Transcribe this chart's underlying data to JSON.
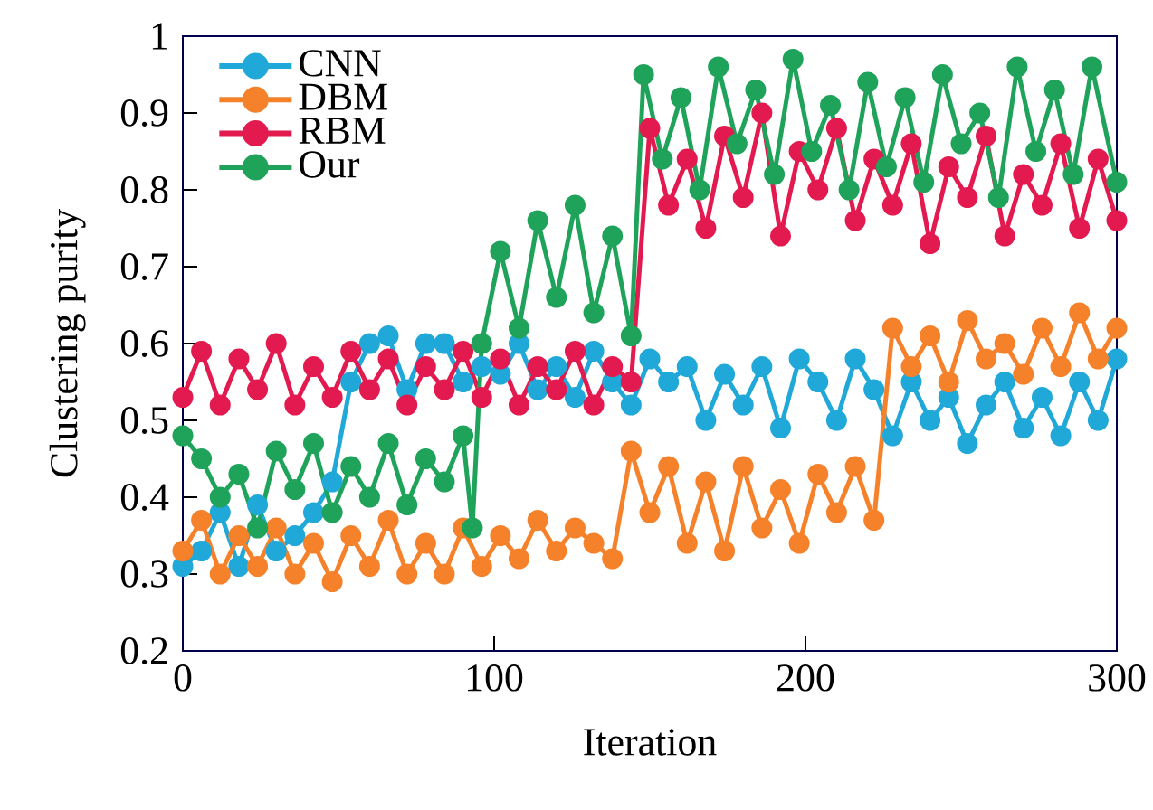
{
  "chart_data": {
    "type": "line",
    "xlabel": "Iteration",
    "ylabel": "Clustering purity",
    "xlim": [
      0,
      300
    ],
    "ylim": [
      0.2,
      1
    ],
    "xticks": [
      0,
      100,
      200,
      300
    ],
    "yticks": [
      0.2,
      0.3,
      0.4,
      0.5,
      0.6,
      0.7,
      0.8,
      0.9,
      1
    ],
    "grid": false,
    "legend": "top left",
    "marker": "circle",
    "line_style": "solid",
    "series": [
      {
        "name": "CNN",
        "color": "#1fa8d8",
        "x": [
          0,
          6,
          12,
          18,
          24,
          30,
          36,
          42,
          48,
          54,
          60,
          66,
          72,
          78,
          84,
          90,
          96,
          102,
          108,
          114,
          120,
          126,
          132,
          138,
          144,
          150,
          156,
          162,
          168,
          174,
          180,
          186,
          192,
          198,
          204,
          210,
          216,
          222,
          228,
          234,
          240,
          246,
          252,
          258,
          264,
          270,
          276,
          282,
          288,
          294,
          300
        ],
        "values": [
          0.31,
          0.33,
          0.38,
          0.31,
          0.39,
          0.33,
          0.35,
          0.38,
          0.42,
          0.55,
          0.6,
          0.61,
          0.54,
          0.6,
          0.6,
          0.55,
          0.57,
          0.56,
          0.6,
          0.54,
          0.57,
          0.53,
          0.59,
          0.55,
          0.52,
          0.58,
          0.55,
          0.57,
          0.5,
          0.56,
          0.52,
          0.57,
          0.49,
          0.58,
          0.55,
          0.5,
          0.58,
          0.54,
          0.48,
          0.55,
          0.5,
          0.53,
          0.47,
          0.52,
          0.55,
          0.49,
          0.53,
          0.48,
          0.55,
          0.5,
          0.58
        ]
      },
      {
        "name": "DBM",
        "color": "#f5822a",
        "x": [
          0,
          6,
          12,
          18,
          24,
          30,
          36,
          42,
          48,
          54,
          60,
          66,
          72,
          78,
          84,
          90,
          96,
          102,
          108,
          114,
          120,
          126,
          132,
          138,
          144,
          150,
          156,
          162,
          168,
          174,
          180,
          186,
          192,
          198,
          204,
          210,
          216,
          222,
          228,
          234,
          240,
          246,
          252,
          258,
          264,
          270,
          276,
          282,
          288,
          294,
          300
        ],
        "values": [
          0.33,
          0.37,
          0.3,
          0.35,
          0.31,
          0.36,
          0.3,
          0.34,
          0.29,
          0.35,
          0.31,
          0.37,
          0.3,
          0.34,
          0.3,
          0.36,
          0.31,
          0.35,
          0.32,
          0.37,
          0.33,
          0.36,
          0.34,
          0.32,
          0.46,
          0.38,
          0.44,
          0.34,
          0.42,
          0.33,
          0.44,
          0.36,
          0.41,
          0.34,
          0.43,
          0.38,
          0.44,
          0.37,
          0.62,
          0.57,
          0.61,
          0.55,
          0.63,
          0.58,
          0.6,
          0.56,
          0.62,
          0.57,
          0.64,
          0.58,
          0.62
        ]
      },
      {
        "name": "RBM",
        "color": "#e31a4f",
        "x": [
          0,
          6,
          12,
          18,
          24,
          30,
          36,
          42,
          48,
          54,
          60,
          66,
          72,
          78,
          84,
          90,
          96,
          102,
          108,
          114,
          120,
          126,
          132,
          138,
          144,
          150,
          156,
          162,
          168,
          174,
          180,
          186,
          192,
          198,
          204,
          210,
          216,
          222,
          228,
          234,
          240,
          246,
          252,
          258,
          264,
          270,
          276,
          282,
          288,
          294,
          300
        ],
        "values": [
          0.53,
          0.59,
          0.52,
          0.58,
          0.54,
          0.6,
          0.52,
          0.57,
          0.53,
          0.59,
          0.54,
          0.58,
          0.52,
          0.57,
          0.54,
          0.59,
          0.53,
          0.58,
          0.52,
          0.57,
          0.54,
          0.59,
          0.52,
          0.57,
          0.55,
          0.88,
          0.78,
          0.84,
          0.75,
          0.87,
          0.79,
          0.9,
          0.74,
          0.85,
          0.8,
          0.88,
          0.76,
          0.84,
          0.78,
          0.86,
          0.73,
          0.83,
          0.79,
          0.87,
          0.74,
          0.82,
          0.78,
          0.86,
          0.75,
          0.84,
          0.76
        ]
      },
      {
        "name": "Our",
        "color": "#1fa35a",
        "x": [
          0,
          6,
          12,
          18,
          24,
          30,
          36,
          42,
          48,
          54,
          60,
          66,
          72,
          78,
          84,
          90,
          93,
          96,
          102,
          108,
          114,
          120,
          126,
          132,
          138,
          144,
          148,
          154,
          160,
          166,
          172,
          178,
          184,
          190,
          196,
          202,
          208,
          214,
          220,
          226,
          232,
          238,
          244,
          250,
          256,
          262,
          268,
          274,
          280,
          286,
          292,
          300
        ],
        "values": [
          0.48,
          0.45,
          0.4,
          0.43,
          0.36,
          0.46,
          0.41,
          0.47,
          0.38,
          0.44,
          0.4,
          0.47,
          0.39,
          0.45,
          0.42,
          0.48,
          0.36,
          0.6,
          0.72,
          0.62,
          0.76,
          0.66,
          0.78,
          0.64,
          0.74,
          0.61,
          0.95,
          0.84,
          0.92,
          0.8,
          0.96,
          0.86,
          0.93,
          0.82,
          0.97,
          0.85,
          0.91,
          0.8,
          0.94,
          0.83,
          0.92,
          0.81,
          0.95,
          0.86,
          0.9,
          0.79,
          0.96,
          0.85,
          0.93,
          0.82,
          0.96,
          0.81
        ]
      }
    ]
  }
}
